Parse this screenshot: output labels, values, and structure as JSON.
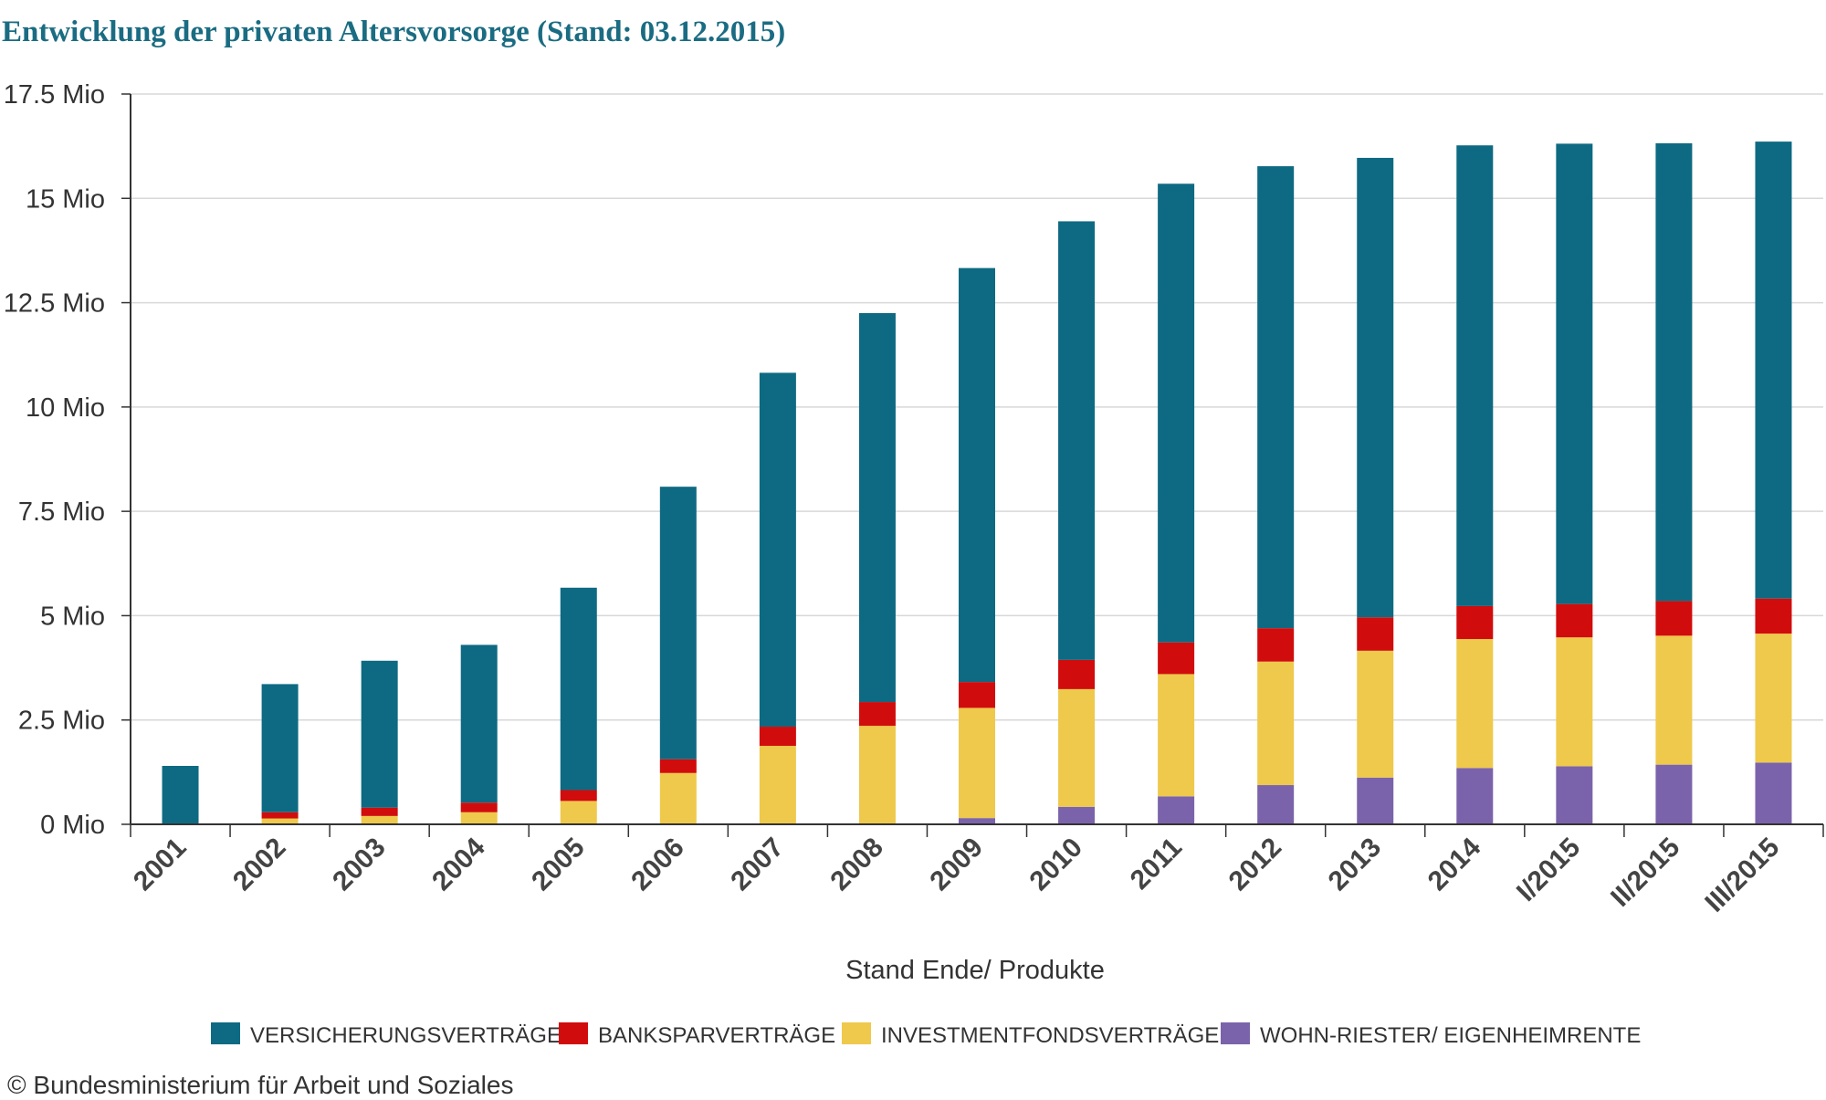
{
  "chart_data": {
    "type": "bar",
    "stacked": true,
    "title": "Entwicklung der privaten Altersvorsorge (Stand: 03.12.2015)",
    "xlabel": "Stand Ende/ Produkte",
    "ylabel": "",
    "ylim": [
      0,
      17.5
    ],
    "yticks": [
      0,
      2.5,
      5,
      7.5,
      10,
      12.5,
      15,
      17.5
    ],
    "ytick_labels": [
      "0 Mio",
      "2.5 Mio",
      "5 Mio",
      "7.5 Mio",
      "10 Mio",
      "12.5 Mio",
      "15 Mio",
      "17.5 Mio"
    ],
    "grid": true,
    "legend_position": "bottom",
    "categories": [
      "2001",
      "2002",
      "2003",
      "2004",
      "2005",
      "2006",
      "2007",
      "2008",
      "2009",
      "2010",
      "2011",
      "2012",
      "2013",
      "2014",
      "I/2015",
      "II/2015",
      "III/2015"
    ],
    "series": [
      {
        "name": "WOHN-RIESTER/ EIGENHEIMRENTE",
        "color": "#7b63ab",
        "values": [
          0,
          0,
          0,
          0,
          0,
          0,
          0,
          0,
          0.15,
          0.42,
          0.67,
          0.94,
          1.12,
          1.35,
          1.39,
          1.43,
          1.48
        ]
      },
      {
        "name": "INVESTMENTFONDSVERTRÄGE",
        "color": "#eec94b",
        "values": [
          0,
          0.14,
          0.2,
          0.29,
          0.56,
          1.23,
          1.88,
          2.36,
          2.64,
          2.82,
          2.93,
          2.96,
          3.04,
          3.09,
          3.09,
          3.09,
          3.09
        ]
      },
      {
        "name": "BANKSPARVERTRÄGE",
        "color": "#d10c0c",
        "values": [
          0,
          0.15,
          0.2,
          0.23,
          0.26,
          0.33,
          0.46,
          0.57,
          0.62,
          0.7,
          0.76,
          0.8,
          0.8,
          0.79,
          0.8,
          0.83,
          0.84
        ]
      },
      {
        "name": "VERSICHERUNGSVERTRÄGE",
        "color": "#0e6a82",
        "values": [
          1.4,
          3.07,
          3.52,
          3.78,
          4.85,
          6.53,
          8.48,
          9.32,
          9.92,
          10.51,
          10.99,
          11.07,
          11.01,
          11.04,
          11.03,
          10.97,
          10.95
        ]
      }
    ]
  },
  "footer": {
    "copyright": "© Bundesministerium für Arbeit und Soziales"
  },
  "colors": {
    "title": "#1a6c82",
    "grid": "#d8d8d8",
    "axis": "#333333",
    "text": "#333333"
  }
}
